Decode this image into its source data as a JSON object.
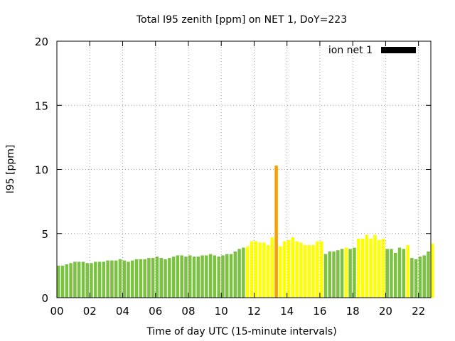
{
  "chart_data": {
    "type": "bar",
    "title": "Total I95 zenith [ppm] on NET 1, DoY=223",
    "xlabel": "Time of day UTC (15-minute intervals)",
    "ylabel": "I95 [ppm]",
    "ylim": [
      0,
      20
    ],
    "xlim": [
      0,
      22.75
    ],
    "y_ticks": [
      "0",
      "5",
      "10",
      "15",
      "20"
    ],
    "x_ticks": [
      "00",
      "02",
      "04",
      "06",
      "08",
      "10",
      "12",
      "14",
      "16",
      "18",
      "20",
      "22"
    ],
    "grid": true,
    "legend": {
      "label": "ion net 1",
      "position": "top-right",
      "color": "#000000"
    },
    "colors": {
      "green": "#7cc242",
      "yellow": "#ffff00",
      "orange": "#f4a200"
    },
    "series": [
      {
        "name": "ion net 1",
        "x": [
          0,
          0.25,
          0.5,
          0.75,
          1,
          1.25,
          1.5,
          1.75,
          2,
          2.25,
          2.5,
          2.75,
          3,
          3.25,
          3.5,
          3.75,
          4,
          4.25,
          4.5,
          4.75,
          5,
          5.25,
          5.5,
          5.75,
          6,
          6.25,
          6.5,
          6.75,
          7,
          7.25,
          7.5,
          7.75,
          8,
          8.25,
          8.5,
          8.75,
          9,
          9.25,
          9.5,
          9.75,
          10,
          10.25,
          10.5,
          10.75,
          11,
          11.25,
          11.5,
          11.75,
          12,
          12.25,
          12.5,
          12.75,
          13,
          13.25,
          13.5,
          13.75,
          14,
          14.25,
          14.5,
          14.75,
          15,
          15.25,
          15.5,
          15.75,
          16,
          16.25,
          16.5,
          16.75,
          17,
          17.25,
          17.5,
          17.75,
          18,
          18.25,
          18.5,
          18.75,
          19,
          19.25,
          19.5,
          19.75,
          20,
          20.25,
          20.5,
          20.75,
          21,
          21.25,
          21.5,
          21.75,
          22,
          22.25,
          22.5,
          22.75
        ],
        "values": [
          2.5,
          2.5,
          2.6,
          2.7,
          2.8,
          2.8,
          2.8,
          2.7,
          2.7,
          2.8,
          2.8,
          2.8,
          2.9,
          2.9,
          2.9,
          3.0,
          2.9,
          2.8,
          2.9,
          3.0,
          3.0,
          3.0,
          3.1,
          3.1,
          3.2,
          3.1,
          3.0,
          3.1,
          3.2,
          3.3,
          3.3,
          3.2,
          3.3,
          3.2,
          3.2,
          3.3,
          3.3,
          3.4,
          3.3,
          3.2,
          3.3,
          3.4,
          3.4,
          3.6,
          3.8,
          3.9,
          4.0,
          4.4,
          4.4,
          4.3,
          4.3,
          4.1,
          4.7,
          10.3,
          4.0,
          4.4,
          4.5,
          4.7,
          4.4,
          4.3,
          4.1,
          4.1,
          4.1,
          4.4,
          4.4,
          3.4,
          3.6,
          3.6,
          3.7,
          3.8,
          3.9,
          3.8,
          3.9,
          4.6,
          4.6,
          4.9,
          4.6,
          4.9,
          4.5,
          4.6,
          3.8,
          3.8,
          3.5,
          3.9,
          3.8,
          4.1,
          3.1,
          3.0,
          3.2,
          3.3,
          3.6,
          4.2
        ],
        "color_keys": [
          "green",
          "green",
          "green",
          "green",
          "green",
          "green",
          "green",
          "green",
          "green",
          "green",
          "green",
          "green",
          "green",
          "green",
          "green",
          "green",
          "green",
          "green",
          "green",
          "green",
          "green",
          "green",
          "green",
          "green",
          "green",
          "green",
          "green",
          "green",
          "green",
          "green",
          "green",
          "green",
          "green",
          "green",
          "green",
          "green",
          "green",
          "green",
          "green",
          "green",
          "green",
          "green",
          "green",
          "green",
          "green",
          "green",
          "yellow",
          "yellow",
          "yellow",
          "yellow",
          "yellow",
          "yellow",
          "yellow",
          "orange",
          "yellow",
          "yellow",
          "yellow",
          "yellow",
          "yellow",
          "yellow",
          "yellow",
          "yellow",
          "yellow",
          "yellow",
          "yellow",
          "green",
          "green",
          "green",
          "green",
          "green",
          "yellow",
          "green",
          "green",
          "yellow",
          "yellow",
          "yellow",
          "yellow",
          "yellow",
          "yellow",
          "yellow",
          "green",
          "green",
          "green",
          "green",
          "green",
          "yellow",
          "green",
          "green",
          "green",
          "green",
          "green",
          "yellow"
        ]
      }
    ]
  }
}
